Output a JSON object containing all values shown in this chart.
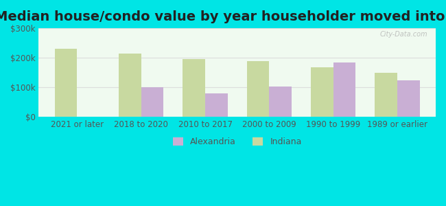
{
  "title": "Median house/condo value by year householder moved into unit",
  "categories": [
    "2021 or later",
    "2018 to 2020",
    "2010 to 2017",
    "2000 to 2009",
    "1990 to 1999",
    "1989 or earlier"
  ],
  "alexandria": [
    0,
    100000,
    80000,
    103000,
    183000,
    123000
  ],
  "indiana": [
    230000,
    215000,
    195000,
    188000,
    168000,
    150000
  ],
  "alexandria_color": "#c9afd4",
  "indiana_color": "#c8d9a0",
  "background_color": "#00e5e5",
  "plot_bg_start": "#f0faf0",
  "plot_bg_end": "#ffffff",
  "ylim": [
    0,
    300000
  ],
  "yticks": [
    0,
    100000,
    200000,
    300000
  ],
  "ytick_labels": [
    "$0",
    "$100k",
    "$200k",
    "$300k"
  ],
  "bar_width": 0.35,
  "legend_labels": [
    "Alexandria",
    "Indiana"
  ],
  "watermark": "City-Data.com",
  "title_fontsize": 14,
  "tick_fontsize": 8.5,
  "legend_fontsize": 9
}
